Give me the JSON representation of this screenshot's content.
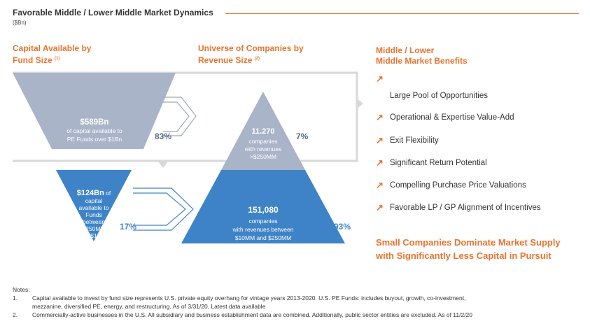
{
  "header": {
    "title": "Favorable Middle / Lower Middle Market Dynamics",
    "subtitle": "($Bn)"
  },
  "left_section": {
    "title_line1": "Capital Available by",
    "title_line2": "Fund Size",
    "title_sup": "(1)",
    "top_value": "$589Bn",
    "top_desc_1": "of capital available to",
    "top_desc_2": "PE Funds over $1Bn",
    "top_pct": "83%",
    "bottom_value": "$124Bn",
    "bottom_value_suffix": " of",
    "bottom_desc": [
      "capital",
      "available to",
      "Funds",
      "between",
      "$250MM",
      "$1"
    ],
    "bottom_pct": "17%"
  },
  "middle_section": {
    "title_line1": "Universe of Companies by",
    "title_line2": "Revenue Size",
    "title_sup": "(2)",
    "top_value": "11.270",
    "top_desc": [
      "companies",
      "with revenues",
      ">$250MM"
    ],
    "top_pct": "7%",
    "bottom_value": "151,080",
    "bottom_desc": [
      "companies",
      "with revenues  between",
      "$10MM  and $250MM"
    ],
    "bottom_pct": "93%"
  },
  "right_section": {
    "title_line1": "Middle / Lower",
    "title_line2": "Middle Market Benefits",
    "benefits": [
      "Large Pool of Opportunities",
      "Operational  & Expertise Value-Add",
      "Exit Flexibility",
      "Significant  Return Potential",
      "Compelling Purchase Price Valuations",
      "Favorable LP / GP Alignment  of Incentives"
    ],
    "summary_line1": "Small Companies Dominate Market Supply",
    "summary_line2": "with Significantly  Less Capital in Pursuit"
  },
  "notes": {
    "heading": "Notes:",
    "items": [
      {
        "num": "1.",
        "text": "Capital available to invest by fund size represents U.S. private equity overhang for vintage years 2013-2020. U.S. PE Funds: includes buyout, growth, co-investment,"
      },
      {
        "num": "",
        "text": "mezzanine, diversified PE, energy, and restructuring. As of 3/31/20. Latest data available"
      },
      {
        "num": "2.",
        "text": "Commercially-active businesses in the U.S. All subsidiary and business establishment data are combined. Additionally, public sector entities are excluded. As of 11/2/20"
      }
    ]
  },
  "colors": {
    "accent": "#e8742f",
    "grey_shape": "#a9b4c8",
    "blue_shape": "#3e83c8",
    "line": "#d8d8d8"
  },
  "icons": {
    "benefit_marker": "arrow-up-right-icon",
    "flow_arrow": "chevron-right-icon"
  }
}
